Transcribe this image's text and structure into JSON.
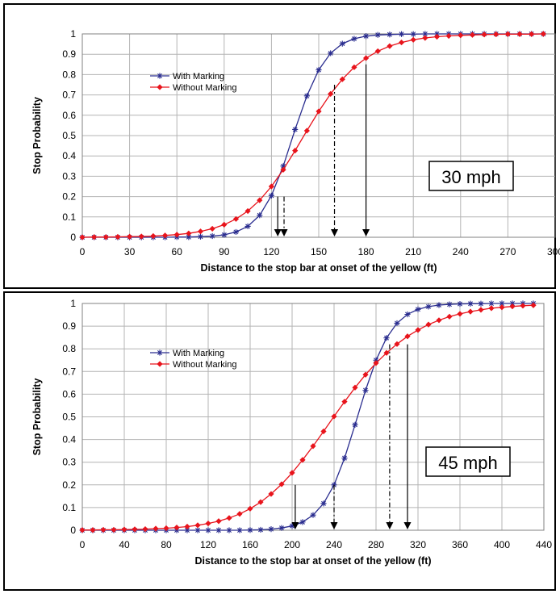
{
  "chart_data": [
    {
      "type": "line",
      "title": "",
      "annotation": "30 mph",
      "xlabel": "Distance to the stop bar at onset of the yellow (ft)",
      "ylabel": "Stop Probability",
      "xlim": [
        0,
        300
      ],
      "ylim": [
        0,
        1
      ],
      "xticks": [
        0,
        30,
        60,
        90,
        120,
        150,
        180,
        210,
        240,
        270,
        300
      ],
      "yticks": [
        0,
        0.1,
        0.2,
        0.3,
        0.4,
        0.5,
        0.6,
        0.7,
        0.8,
        0.9,
        1
      ],
      "grid": true,
      "legend_position": "upper-left",
      "x": [
        0,
        7.5,
        15,
        22.5,
        30,
        37.5,
        45,
        52.5,
        60,
        67.5,
        75,
        82.5,
        90,
        97.5,
        105,
        112.5,
        120,
        127.5,
        135,
        142.5,
        150,
        157.5,
        165,
        172.5,
        180,
        187.5,
        195,
        202.5,
        210,
        217.5,
        225,
        232.5,
        240,
        247.5,
        255,
        262.5,
        270,
        277.5,
        285,
        292.5
      ],
      "series": [
        {
          "name": "With Marking",
          "color": "#2a2d8f",
          "marker": "star",
          "values": [
            0,
            0,
            0,
            0,
            0,
            0,
            0,
            0,
            0.001,
            0.001,
            0.003,
            0.006,
            0.012,
            0.026,
            0.054,
            0.108,
            0.205,
            0.35,
            0.53,
            0.695,
            0.823,
            0.905,
            0.952,
            0.976,
            0.989,
            0.995,
            0.997,
            0.999,
            0.999,
            1,
            1,
            1,
            1,
            1,
            1,
            1,
            1,
            1,
            1,
            1
          ]
        },
        {
          "name": "Without Marking",
          "color": "#e8141c",
          "marker": "diamond",
          "values": [
            0,
            0.001,
            0.001,
            0.002,
            0.003,
            0.004,
            0.006,
            0.009,
            0.013,
            0.019,
            0.029,
            0.042,
            0.062,
            0.09,
            0.129,
            0.182,
            0.25,
            0.332,
            0.426,
            0.524,
            0.619,
            0.705,
            0.777,
            0.836,
            0.881,
            0.915,
            0.94,
            0.958,
            0.971,
            0.98,
            0.986,
            0.99,
            0.993,
            0.995,
            0.997,
            0.998,
            0.999,
            0.999,
            0.999,
            1
          ]
        }
      ],
      "vertical_markers": [
        {
          "x": 124,
          "y": 0.2,
          "style": "solid"
        },
        {
          "x": 128,
          "y": 0.2,
          "style": "dashdot"
        },
        {
          "x": 160,
          "y": 0.75,
          "style": "dashdot"
        },
        {
          "x": 180,
          "y": 0.85,
          "style": "solid"
        }
      ]
    },
    {
      "type": "line",
      "title": "",
      "annotation": "45 mph",
      "xlabel": "Distance to the stop bar at onset of the yellow (ft)",
      "ylabel": "Stop Probability",
      "xlim": [
        0,
        440
      ],
      "ylim": [
        0,
        1
      ],
      "xticks": [
        0,
        40,
        80,
        120,
        160,
        200,
        240,
        280,
        320,
        360,
        400,
        440
      ],
      "yticks": [
        0,
        0.1,
        0.2,
        0.3,
        0.4,
        0.5,
        0.6,
        0.7,
        0.8,
        0.9,
        1
      ],
      "grid": true,
      "legend_position": "upper-left",
      "x": [
        0,
        10,
        20,
        30,
        40,
        50,
        60,
        70,
        80,
        90,
        100,
        110,
        120,
        130,
        140,
        150,
        160,
        170,
        180,
        190,
        200,
        210,
        220,
        230,
        240,
        250,
        260,
        270,
        280,
        290,
        300,
        310,
        320,
        330,
        340,
        350,
        360,
        370,
        380,
        390,
        400,
        410,
        420,
        430
      ],
      "series": [
        {
          "name": "With Marking",
          "color": "#2a2d8f",
          "marker": "star",
          "values": [
            0,
            0,
            0,
            0,
            0,
            0,
            0,
            0,
            0,
            0,
            0,
            0,
            0,
            0,
            0,
            0,
            0.001,
            0.002,
            0.005,
            0.01,
            0.019,
            0.036,
            0.067,
            0.118,
            0.2,
            0.318,
            0.465,
            0.617,
            0.75,
            0.848,
            0.913,
            0.952,
            0.974,
            0.986,
            0.993,
            0.996,
            0.998,
            0.999,
            0.999,
            1,
            1,
            1,
            1,
            1
          ]
        },
        {
          "name": "Without Marking",
          "color": "#e8141c",
          "marker": "diamond",
          "values": [
            0.001,
            0.001,
            0.002,
            0.002,
            0.003,
            0.004,
            0.005,
            0.007,
            0.009,
            0.012,
            0.016,
            0.022,
            0.03,
            0.04,
            0.054,
            0.072,
            0.095,
            0.124,
            0.16,
            0.203,
            0.253,
            0.31,
            0.371,
            0.436,
            0.502,
            0.567,
            0.629,
            0.686,
            0.737,
            0.782,
            0.821,
            0.855,
            0.883,
            0.907,
            0.926,
            0.942,
            0.954,
            0.964,
            0.972,
            0.979,
            0.983,
            0.987,
            0.99,
            0.992
          ]
        }
      ],
      "vertical_markers": [
        {
          "x": 203,
          "y": 0.2,
          "style": "solid"
        },
        {
          "x": 240,
          "y": 0.2,
          "style": "dashdot"
        },
        {
          "x": 293,
          "y": 0.82,
          "style": "dashdot"
        },
        {
          "x": 310,
          "y": 0.82,
          "style": "solid"
        }
      ]
    }
  ]
}
